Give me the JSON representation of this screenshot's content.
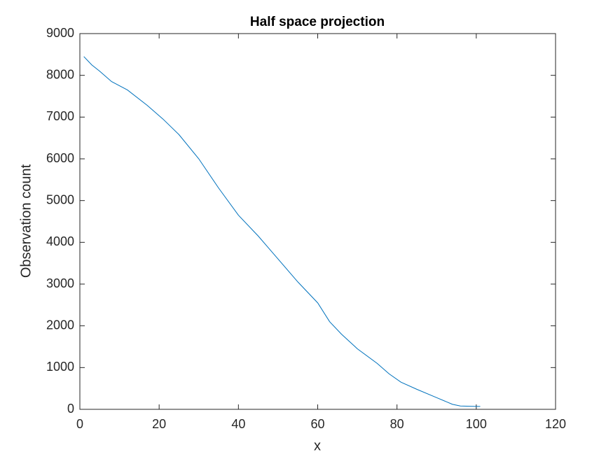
{
  "chart_data": {
    "type": "line",
    "title": "Half space projection",
    "x_label": "x",
    "y_label": "Observation count",
    "x": [
      1,
      3,
      5,
      8,
      12,
      17,
      21,
      25,
      30,
      35,
      40,
      45,
      50,
      55,
      60,
      63,
      66,
      70,
      75,
      78,
      81,
      85,
      90,
      94,
      96,
      100,
      101
    ],
    "series": [
      {
        "name": "Observation count",
        "color": "#0072bd",
        "values": [
          8450,
          8250,
          8100,
          7850,
          7650,
          7280,
          6950,
          6580,
          6000,
          5300,
          4650,
          4150,
          3600,
          3050,
          2550,
          2100,
          1800,
          1450,
          1100,
          850,
          650,
          480,
          280,
          120,
          80,
          70,
          70
        ]
      }
    ],
    "xlim": [
      0,
      120
    ],
    "xticks": [
      0,
      20,
      40,
      60,
      80,
      100,
      120
    ],
    "ylim": [
      0,
      9000
    ],
    "yticks": [
      0,
      1000,
      2000,
      3000,
      4000,
      5000,
      6000,
      7000,
      8000,
      9000
    ],
    "grid": false
  }
}
